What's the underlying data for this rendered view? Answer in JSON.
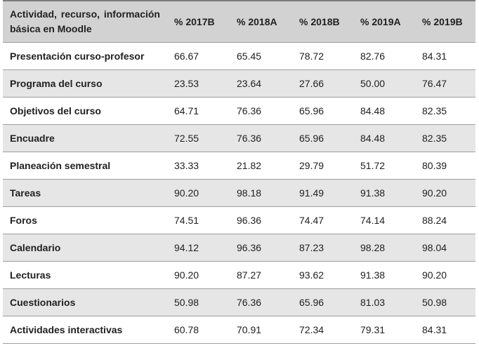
{
  "colors": {
    "header_bg": "#d3d2d2",
    "stripe_bg": "#e7e6e6",
    "top_border": "#7c7c7c",
    "row_border": "#9d9d9d",
    "text": "#212121"
  },
  "table": {
    "header_label": "Actividad, recurso, información básica en Moodle",
    "columns": [
      "% 2017B",
      "% 2018A",
      "% 2018B",
      "% 2019A",
      "% 2019B"
    ],
    "rows": [
      {
        "label": "Presentación curso-profesor",
        "values": [
          "66.67",
          "65.45",
          "78.72",
          "82.76",
          "84.31"
        ]
      },
      {
        "label": "Programa del curso",
        "values": [
          "23.53",
          "23.64",
          "27.66",
          "50.00",
          "76.47"
        ]
      },
      {
        "label": "Objetivos del curso",
        "values": [
          "64.71",
          "76.36",
          "65.96",
          "84.48",
          "82.35"
        ]
      },
      {
        "label": "Encuadre",
        "values": [
          "72.55",
          "76.36",
          "65.96",
          "84.48",
          "82.35"
        ]
      },
      {
        "label": "Planeación semestral",
        "values": [
          "33.33",
          "21.82",
          "29.79",
          "51.72",
          "80.39"
        ]
      },
      {
        "label": "Tareas",
        "values": [
          "90.20",
          "98.18",
          "91.49",
          "91.38",
          "90.20"
        ]
      },
      {
        "label": "Foros",
        "values": [
          "74.51",
          "96.36",
          "74.47",
          "74.14",
          "88.24"
        ]
      },
      {
        "label": "Calendario",
        "values": [
          "94.12",
          "96.36",
          "87.23",
          "98.28",
          "98.04"
        ]
      },
      {
        "label": "Lecturas",
        "values": [
          "90.20",
          "87.27",
          "93.62",
          "91.38",
          "90.20"
        ]
      },
      {
        "label": "Cuestionarios",
        "values": [
          "50.98",
          "76.36",
          "65.96",
          "81.03",
          "50.98"
        ]
      },
      {
        "label": "Actividades interactivas",
        "values": [
          "60.78",
          "70.91",
          "72.34",
          "79.31",
          "84.31"
        ]
      }
    ]
  },
  "chart_data": {
    "type": "table",
    "title": "Actividad, recurso, información básica en Moodle",
    "categories": [
      "Presentación curso-profesor",
      "Programa del curso",
      "Objetivos del curso",
      "Encuadre",
      "Planeación semestral",
      "Tareas",
      "Foros",
      "Calendario",
      "Lecturas",
      "Cuestionarios",
      "Actividades interactivas"
    ],
    "series": [
      {
        "name": "% 2017B",
        "values": [
          66.67,
          23.53,
          64.71,
          72.55,
          33.33,
          90.2,
          74.51,
          94.12,
          90.2,
          50.98,
          60.78
        ]
      },
      {
        "name": "% 2018A",
        "values": [
          65.45,
          23.64,
          76.36,
          76.36,
          21.82,
          98.18,
          96.36,
          96.36,
          87.27,
          76.36,
          70.91
        ]
      },
      {
        "name": "% 2018B",
        "values": [
          78.72,
          27.66,
          65.96,
          65.96,
          29.79,
          91.49,
          74.47,
          87.23,
          93.62,
          65.96,
          72.34
        ]
      },
      {
        "name": "% 2019A",
        "values": [
          82.76,
          50.0,
          84.48,
          84.48,
          51.72,
          91.38,
          74.14,
          98.28,
          91.38,
          81.03,
          79.31
        ]
      },
      {
        "name": "% 2019B",
        "values": [
          84.31,
          76.47,
          82.35,
          82.35,
          80.39,
          90.2,
          88.24,
          98.04,
          90.2,
          50.98,
          84.31
        ]
      }
    ]
  }
}
